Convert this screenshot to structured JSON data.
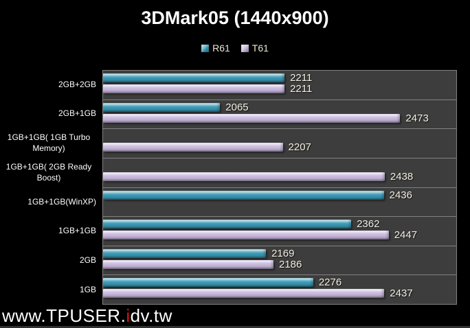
{
  "watermark": {
    "prefix": "www.TPUSER.",
    "highlight": "i",
    "suffix": "dv.tw",
    "highlight_color": "#e01010"
  },
  "colors": {
    "page_background": "#000000",
    "plot_background": "#3d3d3d",
    "grid_border": "#828282",
    "value_label": "#f4f0e3",
    "category_label": "#ffffff",
    "title": "#ffffff"
  },
  "chart_data": {
    "type": "bar",
    "orientation": "horizontal",
    "title": "3DMark05 (1440x900)",
    "categories": [
      "2GB+2GB",
      "2GB+1GB",
      "1GB+1GB( 1GB Turbo Memory)",
      "1GB+1GB( 2GB Ready Boost)",
      "1GB+1GB(WinXP)",
      "1GB+1GB",
      "2GB",
      "1GB"
    ],
    "category_label_lines": [
      [
        "2GB+2GB"
      ],
      [
        "2GB+1GB"
      ],
      [
        "1GB+1GB( 1GB Turbo",
        "Memory)"
      ],
      [
        "1GB+1GB( 2GB Ready",
        "Boost)"
      ],
      [
        "1GB+1GB(WinXP)"
      ],
      [
        "1GB+1GB"
      ],
      [
        "2GB"
      ],
      [
        "1GB"
      ]
    ],
    "series": [
      {
        "name": "R61",
        "color": "#3897b3",
        "values": [
          2211,
          2065,
          null,
          null,
          2436,
          2362,
          2169,
          2276
        ]
      },
      {
        "name": "T61",
        "color": "#c7b7dc",
        "values": [
          2211,
          2473,
          2207,
          2438,
          null,
          2447,
          2186,
          2437
        ]
      }
    ],
    "xlim": [
      1800,
      2600
    ],
    "value_labels": true,
    "grid": false,
    "legend_position": "top-center"
  }
}
